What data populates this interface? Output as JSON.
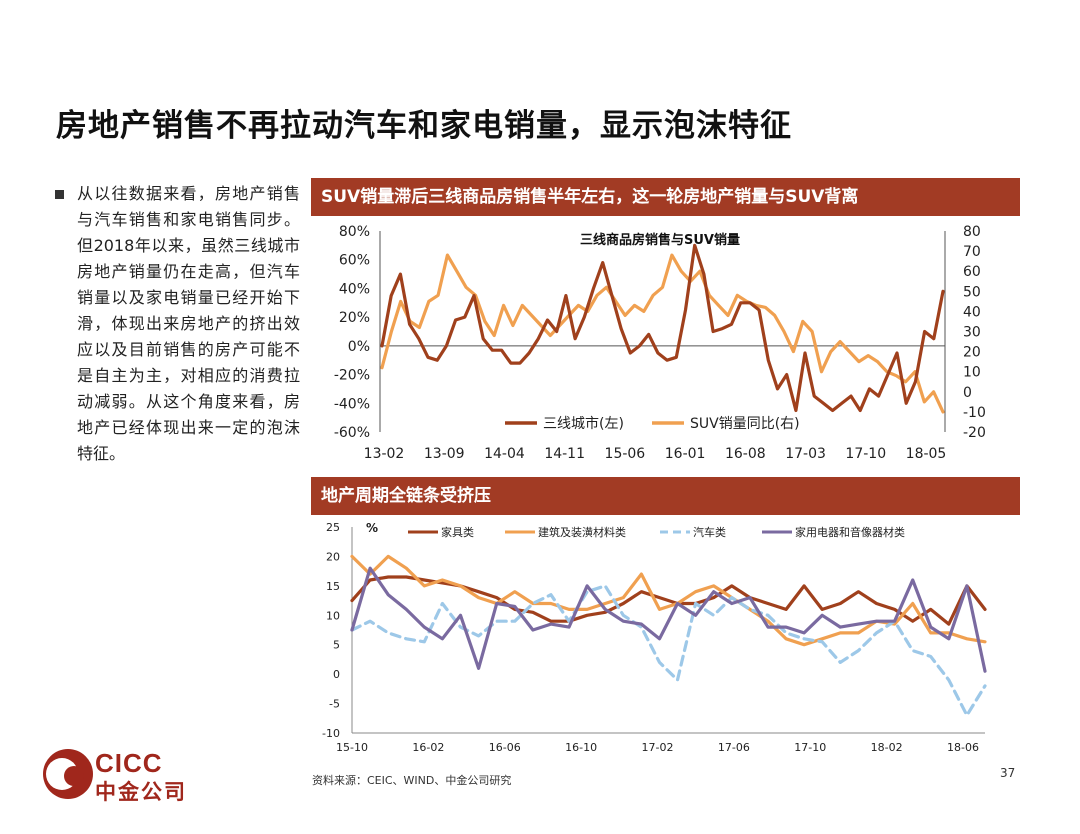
{
  "slide": {
    "title": "房地产销售不再拉动汽车和家电销量，显示泡沫特征",
    "bullet": "从以往数据来看，房地产销售与汽车销售和家电销售同步。但2018年以来，虽然三线城市房地产销量仍在走高，但汽车销量以及家电销量已经开始下滑，体现出来房地产的挤出效应以及目前销售的房产可能不是自主为主，对相应的消费拉动减弱。从这个角度来看，房地产已经体现出来一定的泡沫特征。",
    "banner1": "SUV销量滞后三线商品房销售半年左右，这一轮房地产销量与SUV背离",
    "banner2": "地产周期全链条受挤压",
    "source": "资料来源：CEIC、WIND、中金公司研究",
    "page_number": "37",
    "logo_line1": "CICC",
    "logo_line2": "中金公司"
  },
  "colors": {
    "banner": "#a23b24",
    "dark_red": "#a0401c",
    "orange": "#f0a050",
    "light_blue": "#9dc8e8",
    "purple": "#7a6aa0",
    "logo": "#a0271c"
  },
  "chart_data": [
    {
      "type": "line",
      "title": "三线商品房销售与SUV销量",
      "x_ticks": [
        "13-02",
        "13-09",
        "14-04",
        "14-11",
        "15-06",
        "16-01",
        "16-08",
        "17-03",
        "17-10",
        "18-05"
      ],
      "y_left_ticks": [
        "80%",
        "60%",
        "40%",
        "20%",
        "0%",
        "-20%",
        "-40%",
        "-60%"
      ],
      "y_right_ticks": [
        "80",
        "70",
        "60",
        "50",
        "40",
        "30",
        "20",
        "10",
        "0",
        "-10",
        "-20"
      ],
      "ylim_left": [
        -60,
        80
      ],
      "ylim_right": [
        -20,
        80
      ],
      "grid": false,
      "legend_position": "bottom",
      "series": [
        {
          "name": "三线城市(左)",
          "axis": "left",
          "color": "#a0401c",
          "values": [
            0,
            35,
            50,
            15,
            5,
            -8,
            -10,
            0,
            18,
            20,
            35,
            5,
            -3,
            -3,
            -12,
            -12,
            -5,
            5,
            18,
            10,
            35,
            5,
            20,
            40,
            58,
            35,
            12,
            -5,
            0,
            8,
            -5,
            -10,
            -8,
            25,
            70,
            50,
            10,
            12,
            15,
            30,
            30,
            25,
            -10,
            -30,
            -20,
            -45,
            -5,
            -35,
            -40,
            -45,
            -40,
            -35,
            -45,
            -30,
            -35,
            -20,
            -5,
            -40,
            -25,
            10,
            5,
            38
          ]
        },
        {
          "name": "SUV销量同比(右)",
          "axis": "right",
          "color": "#f0a050",
          "values": [
            12,
            30,
            45,
            35,
            32,
            45,
            48,
            68,
            60,
            52,
            48,
            35,
            28,
            43,
            33,
            43,
            38,
            33,
            28,
            33,
            38,
            43,
            40,
            48,
            52,
            45,
            38,
            43,
            40,
            48,
            52,
            68,
            60,
            55,
            60,
            48,
            43,
            38,
            48,
            45,
            43,
            42,
            38,
            30,
            20,
            35,
            30,
            10,
            20,
            25,
            20,
            15,
            18,
            15,
            10,
            8,
            5,
            10,
            -5,
            0,
            -10
          ]
        }
      ]
    },
    {
      "type": "line",
      "x_ticks": [
        "15-10",
        "16-02",
        "16-06",
        "16-10",
        "17-02",
        "17-06",
        "17-10",
        "18-02",
        "18-06"
      ],
      "y_ticks": [
        "25",
        "20",
        "15",
        "10",
        "5",
        "0",
        "-5",
        "-10"
      ],
      "ylim": [
        -10,
        25
      ],
      "ylabel": "%",
      "legend_position": "top",
      "series": [
        {
          "name": "家具类",
          "color": "#a0401c",
          "dash": "solid",
          "values": [
            12.5,
            16,
            16.5,
            16.5,
            16,
            15.5,
            15,
            14,
            13,
            11,
            10.5,
            9,
            9,
            10,
            10.5,
            12,
            14,
            13,
            12,
            12,
            13,
            15,
            13,
            12,
            11,
            15,
            11,
            12,
            14,
            12,
            11,
            9,
            11,
            8.5,
            15,
            11
          ]
        },
        {
          "name": "建筑及装潢材料类",
          "color": "#f0a050",
          "dash": "solid",
          "values": [
            20,
            17,
            20,
            18,
            15,
            16,
            15,
            13,
            12,
            14,
            12,
            12,
            11,
            11,
            12,
            13,
            17,
            11,
            12,
            14,
            15,
            13,
            11,
            9,
            6,
            5,
            6,
            7,
            7,
            9,
            8.5,
            12,
            7,
            7,
            6,
            5.5
          ]
        },
        {
          "name": "汽车类",
          "color": "#9dc8e8",
          "dash": "dashed",
          "values": [
            7.5,
            9,
            7,
            6,
            5.5,
            12,
            8,
            6.5,
            9,
            9,
            12,
            13.5,
            9,
            14,
            15,
            10,
            8,
            2,
            -1,
            12,
            10,
            13,
            11,
            10,
            7,
            6,
            5.5,
            2,
            4,
            7,
            9,
            4,
            3,
            -1,
            -7,
            -2
          ]
        },
        {
          "name": "家用电器和音像器材类",
          "color": "#7a6aa0",
          "dash": "solid",
          "values": [
            7.5,
            18,
            13.5,
            11,
            8,
            6,
            10,
            1,
            12,
            11.5,
            7.5,
            8.5,
            8,
            15,
            11,
            9,
            8.5,
            6,
            12,
            10,
            14,
            12,
            13,
            8,
            8,
            7,
            10,
            8,
            8.5,
            9,
            9,
            16,
            8,
            6,
            15,
            0.5
          ]
        }
      ]
    }
  ]
}
